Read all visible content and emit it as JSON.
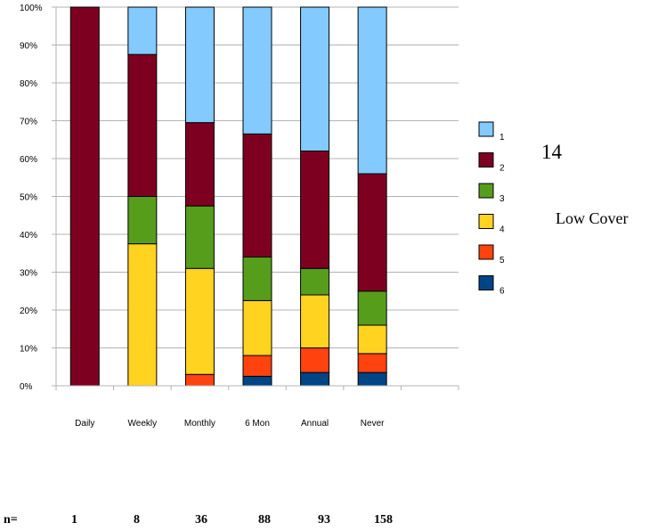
{
  "chart_data": {
    "type": "bar",
    "stacked": true,
    "percent": true,
    "categories": [
      "Daily",
      "Weekly",
      "Monthly",
      "6 Mon",
      "Annual",
      "Never"
    ],
    "y_ticks": [
      "0%",
      "10%",
      "20%",
      "30%",
      "40%",
      "50%",
      "60%",
      "70%",
      "80%",
      "90%",
      "100%"
    ],
    "ylim": [
      0,
      100
    ],
    "grid": true,
    "legend_position": "right",
    "series": [
      {
        "name": "6",
        "color": "#004586",
        "values": [
          0,
          0,
          0,
          2.5,
          3.5,
          3.5
        ]
      },
      {
        "name": "5",
        "color": "#ff420e",
        "values": [
          0,
          0,
          3,
          5.5,
          6.5,
          5
        ]
      },
      {
        "name": "4",
        "color": "#ffd320",
        "values": [
          0,
          37.5,
          28,
          14.5,
          14,
          7.5
        ]
      },
      {
        "name": "3",
        "color": "#579d1c",
        "values": [
          0,
          12.5,
          16.5,
          11.5,
          7,
          9
        ]
      },
      {
        "name": "2",
        "color": "#7e0021",
        "values": [
          100,
          37.5,
          22,
          32.5,
          31,
          31
        ]
      },
      {
        "name": "1",
        "color": "#83caff",
        "values": [
          0,
          12.5,
          30.5,
          33.5,
          38,
          44
        ]
      }
    ]
  },
  "side": {
    "number": "14",
    "label": "Low Cover"
  },
  "n_row": {
    "label": "n=",
    "values": [
      "1",
      "8",
      "36",
      "88",
      "93",
      "158"
    ]
  }
}
